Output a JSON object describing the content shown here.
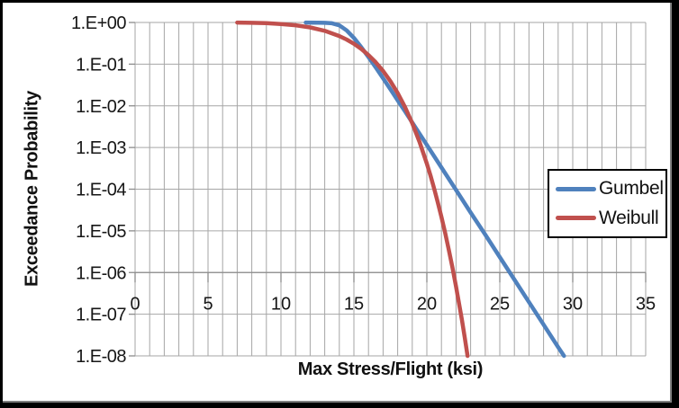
{
  "frame": {
    "outer_border_color": "#000000",
    "inner_edge_color": "#7F7F7F",
    "background": "#FFFFFF"
  },
  "chart_data": {
    "type": "line",
    "title": "",
    "xlabel": "Max Stress/Flight (ksi)",
    "ylabel": "Exceedance Probability",
    "x_range": [
      0,
      35
    ],
    "x_minor_step": 1,
    "x_major_ticks": [
      0,
      5,
      10,
      15,
      20,
      25,
      30,
      35
    ],
    "x_tick_labels": [
      "0",
      "5",
      "10",
      "15",
      "20",
      "25",
      "30",
      "35"
    ],
    "y_scale": "log10",
    "y_range": [
      1,
      1e-08
    ],
    "y_log_range": [
      0,
      -8
    ],
    "y_ticks_log10": [
      0,
      -1,
      -2,
      -3,
      -4,
      -5,
      -6,
      -7,
      -8
    ],
    "y_tick_labels": [
      "1.E+00",
      "1.E-01",
      "1.E-02",
      "1.E-03",
      "1.E-04",
      "1.E-05",
      "1.E-06",
      "1.E-07",
      "1.E-08"
    ],
    "x_axis_cross_log10": -6,
    "grid_color": "#A6A6A6",
    "axis_color": "#8C8C8C",
    "text_color": "#161616",
    "legend": {
      "position": "middle-right",
      "background": "#FFFFFF",
      "border_color": "#000000",
      "labels": [
        "Gumbel",
        "Weibull"
      ]
    },
    "series": [
      {
        "name": "Gumbel",
        "color": "#4F81BD",
        "points_log10": [
          [
            11.7,
            -0.002
          ],
          [
            12.5,
            -0.004
          ],
          [
            13,
            -0.008
          ],
          [
            13.5,
            -0.02
          ],
          [
            14,
            -0.07
          ],
          [
            14.5,
            -0.19
          ],
          [
            15,
            -0.37
          ],
          [
            15.5,
            -0.59
          ],
          [
            16,
            -0.83
          ],
          [
            16.5,
            -1.08
          ],
          [
            17,
            -1.34
          ],
          [
            17.5,
            -1.6
          ],
          [
            18,
            -1.87
          ],
          [
            18.5,
            -2.13
          ],
          [
            19,
            -2.4
          ],
          [
            19.5,
            -2.67
          ],
          [
            20,
            -2.94
          ],
          [
            21,
            -3.48
          ],
          [
            22,
            -4.02
          ],
          [
            23,
            -4.56
          ],
          [
            24,
            -5.09
          ],
          [
            25,
            -5.63
          ],
          [
            26,
            -6.17
          ],
          [
            27,
            -6.71
          ],
          [
            28,
            -7.25
          ],
          [
            29,
            -7.79
          ],
          [
            29.4,
            -8
          ]
        ]
      },
      {
        "name": "Weibull",
        "color": "#C0504D",
        "points_log10": [
          [
            7,
            -0.003
          ],
          [
            8,
            -0.008
          ],
          [
            9,
            -0.018
          ],
          [
            10,
            -0.036
          ],
          [
            11,
            -0.067
          ],
          [
            12,
            -0.118
          ],
          [
            13,
            -0.2
          ],
          [
            14,
            -0.325
          ],
          [
            14.5,
            -0.41
          ],
          [
            15,
            -0.512
          ],
          [
            15.5,
            -0.635
          ],
          [
            16,
            -0.782
          ],
          [
            16.5,
            -0.957
          ],
          [
            17,
            -1.165
          ],
          [
            17.5,
            -1.409
          ],
          [
            18,
            -1.695
          ],
          [
            18.5,
            -2.03
          ],
          [
            19,
            -2.419
          ],
          [
            19.5,
            -2.869
          ],
          [
            20,
            -3.388
          ],
          [
            20.25,
            -3.676
          ],
          [
            20.5,
            -3.984
          ],
          [
            20.75,
            -4.315
          ],
          [
            21,
            -4.667
          ],
          [
            21.25,
            -5.045
          ],
          [
            21.5,
            -5.448
          ],
          [
            21.75,
            -5.878
          ],
          [
            22,
            -6.336
          ],
          [
            22.25,
            -6.825
          ],
          [
            22.4,
            -7.131
          ],
          [
            22.6,
            -7.562
          ],
          [
            22.79,
            -8
          ]
        ]
      }
    ]
  }
}
